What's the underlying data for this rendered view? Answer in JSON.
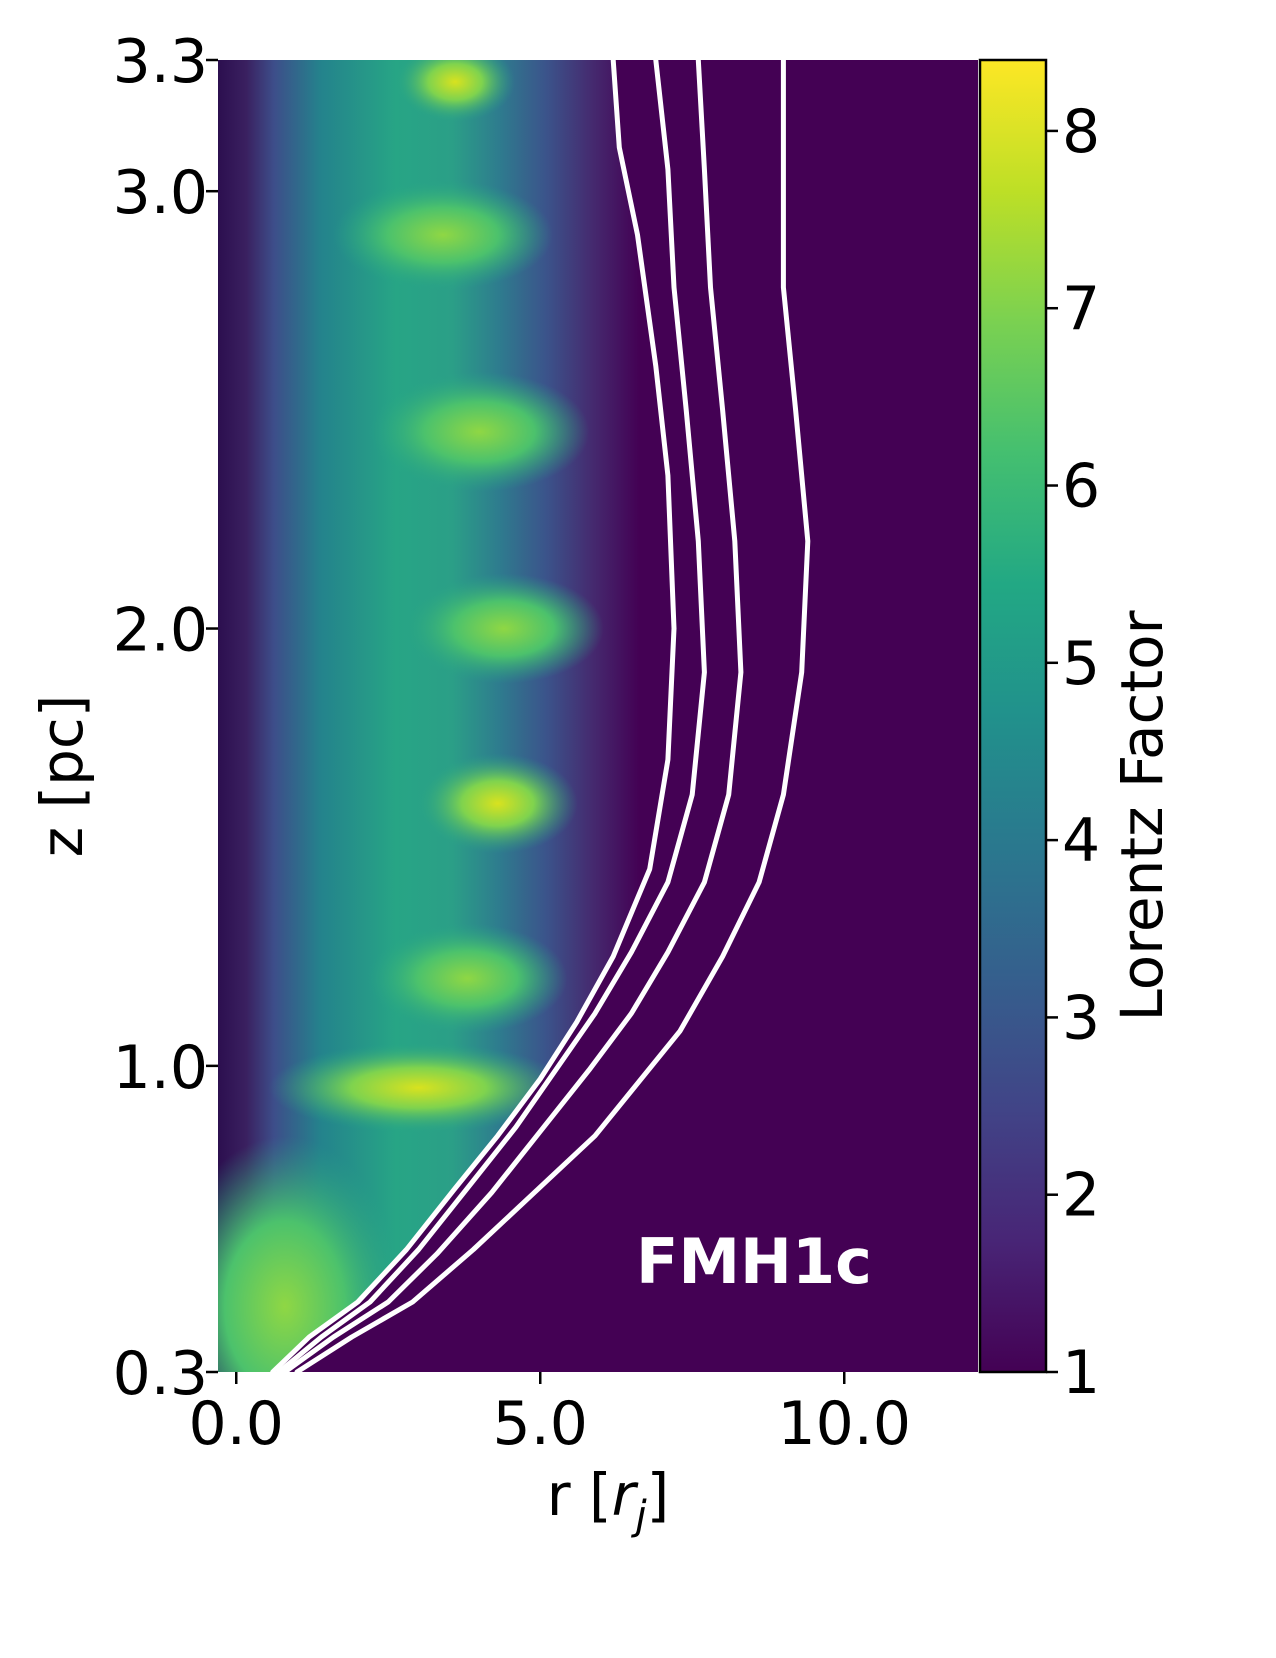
{
  "chart_data": {
    "type": "heatmap",
    "title": "",
    "xlabel": "r [r_j]",
    "xlabel_parts": {
      "main": "r [",
      "var": "r",
      "sub": "j",
      "close": "]"
    },
    "ylabel": "z [pc]",
    "xlim": [
      -0.3,
      12.2
    ],
    "ylim": [
      0.3,
      3.3
    ],
    "x_ticks": [
      {
        "value": 0.0,
        "label": "0.0"
      },
      {
        "value": 5.0,
        "label": "5.0"
      },
      {
        "value": 10.0,
        "label": "10.0"
      }
    ],
    "y_ticks": [
      {
        "value": 0.3,
        "label": "0.3"
      },
      {
        "value": 1.0,
        "label": "1.0"
      },
      {
        "value": 2.0,
        "label": "2.0"
      },
      {
        "value": 3.0,
        "label": "3.0"
      },
      {
        "value": 3.3,
        "label": "3.3"
      }
    ],
    "colorbar": {
      "label": "Lorentz Factor",
      "range": [
        1,
        8.4
      ],
      "colormap": "viridis",
      "ticks": [
        "1",
        "2",
        "3",
        "4",
        "5",
        "6",
        "7",
        "8"
      ]
    },
    "annotation": "FMH1c",
    "contour_color": "#ffffff",
    "contours": [
      [
        [
          0.6,
          0.3
        ],
        [
          1.2,
          0.38
        ],
        [
          2.0,
          0.46
        ],
        [
          2.8,
          0.58
        ],
        [
          3.6,
          0.72
        ],
        [
          4.3,
          0.84
        ],
        [
          5.0,
          0.97
        ],
        [
          5.6,
          1.1
        ],
        [
          6.2,
          1.25
        ],
        [
          6.8,
          1.45
        ],
        [
          7.1,
          1.7
        ],
        [
          7.2,
          2.0
        ],
        [
          7.1,
          2.35
        ],
        [
          6.9,
          2.6
        ],
        [
          6.6,
          2.9
        ],
        [
          6.3,
          3.1
        ],
        [
          6.2,
          3.3
        ]
      ],
      [
        [
          0.7,
          0.3
        ],
        [
          1.4,
          0.38
        ],
        [
          2.2,
          0.46
        ],
        [
          3.0,
          0.58
        ],
        [
          3.8,
          0.72
        ],
        [
          4.6,
          0.86
        ],
        [
          5.3,
          1.0
        ],
        [
          5.9,
          1.12
        ],
        [
          6.5,
          1.26
        ],
        [
          7.1,
          1.42
        ],
        [
          7.5,
          1.62
        ],
        [
          7.7,
          1.9
        ],
        [
          7.6,
          2.2
        ],
        [
          7.4,
          2.5
        ],
        [
          7.2,
          2.78
        ],
        [
          7.1,
          3.05
        ],
        [
          6.9,
          3.3
        ]
      ],
      [
        [
          0.8,
          0.3
        ],
        [
          1.6,
          0.38
        ],
        [
          2.5,
          0.46
        ],
        [
          3.3,
          0.57
        ],
        [
          4.2,
          0.71
        ],
        [
          5.0,
          0.85
        ],
        [
          5.8,
          0.99
        ],
        [
          6.5,
          1.12
        ],
        [
          7.1,
          1.26
        ],
        [
          7.7,
          1.42
        ],
        [
          8.1,
          1.62
        ],
        [
          8.3,
          1.9
        ],
        [
          8.2,
          2.2
        ],
        [
          8.0,
          2.5
        ],
        [
          7.8,
          2.78
        ],
        [
          7.7,
          3.05
        ],
        [
          7.6,
          3.3
        ]
      ],
      [
        [
          1.0,
          0.3
        ],
        [
          1.9,
          0.38
        ],
        [
          2.9,
          0.46
        ],
        [
          3.9,
          0.58
        ],
        [
          4.9,
          0.71
        ],
        [
          5.9,
          0.84
        ],
        [
          6.6,
          0.96
        ],
        [
          7.3,
          1.08
        ],
        [
          8.0,
          1.25
        ],
        [
          8.6,
          1.42
        ],
        [
          9.0,
          1.62
        ],
        [
          9.3,
          1.9
        ],
        [
          9.4,
          2.2
        ],
        [
          9.2,
          2.5
        ],
        [
          9.0,
          2.78
        ],
        [
          9.0,
          3.05
        ],
        [
          9.0,
          3.3
        ]
      ]
    ]
  }
}
